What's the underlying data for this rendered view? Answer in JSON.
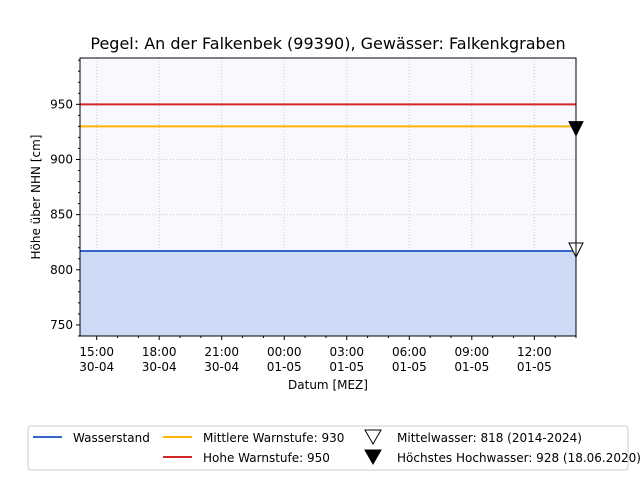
{
  "chart_data": {
    "type": "line",
    "title": "Pegel:  An der Falkenbek (99390), Gewässer:  Falkenkgraben",
    "xlabel": "Datum [MEZ]",
    "ylabel": "Höhe über NHN [cm]",
    "ylim": [
      740,
      992
    ],
    "xlim_hours_from_first_tick": [
      -0.8,
      23.0
    ],
    "x_ticks": [
      {
        "line1": "15:00",
        "line2": "30-04",
        "hour": 0
      },
      {
        "line1": "18:00",
        "line2": "30-04",
        "hour": 3
      },
      {
        "line1": "21:00",
        "line2": "30-04",
        "hour": 6
      },
      {
        "line1": "00:00",
        "line2": "01-05",
        "hour": 9
      },
      {
        "line1": "03:00",
        "line2": "01-05",
        "hour": 12
      },
      {
        "line1": "06:00",
        "line2": "01-05",
        "hour": 15
      },
      {
        "line1": "09:00",
        "line2": "01-05",
        "hour": 18
      },
      {
        "line1": "12:00",
        "line2": "01-05",
        "hour": 21
      }
    ],
    "y_ticks": [
      750,
      800,
      850,
      900,
      950
    ],
    "grid": true,
    "series": [
      {
        "name": "Wasserstand",
        "type": "area",
        "color": "#3366cc",
        "fill": "#ccdaf5",
        "value": 817
      },
      {
        "name": "Mittlere Warnstufe: 930",
        "type": "hline",
        "color": "#ffb300",
        "value": 930
      },
      {
        "name": "Hohe Warnstufe: 950",
        "type": "hline",
        "color": "#d62728",
        "value": 950
      }
    ],
    "markers": [
      {
        "name": "Mittelwasser: 818 (2014-2024)",
        "symbol": "triangle-open",
        "value": 818
      },
      {
        "name": "Höchstes Hochwasser: 928 (18.06.2020)",
        "symbol": "triangle-filled",
        "value": 928
      }
    ],
    "legend_position": "bottom",
    "colors": {
      "plot_background": "#f8f8ff"
    }
  }
}
